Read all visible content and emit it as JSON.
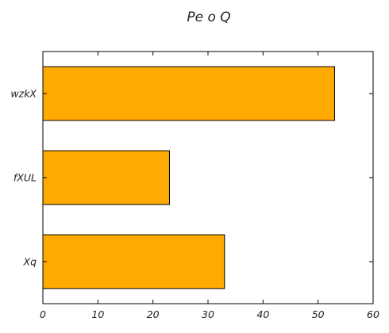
{
  "chart_data": {
    "type": "bar",
    "orientation": "horizontal",
    "title": "Pe o Q",
    "xlabel": "",
    "ylabel": "",
    "categories": [
      "Xq",
      "fXUL",
      "wzkX"
    ],
    "values": [
      33,
      23,
      53
    ],
    "xlim": [
      0,
      60
    ],
    "xticks": [
      0,
      10,
      20,
      30,
      40,
      50,
      60
    ],
    "grid": false,
    "bar_color": "#FFAA00",
    "edge_color": "#000000"
  }
}
